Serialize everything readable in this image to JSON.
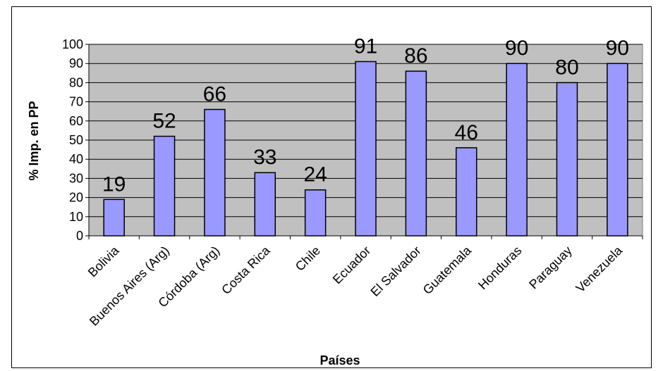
{
  "chart_data": {
    "type": "bar",
    "title": "",
    "xlabel": "Países",
    "ylabel": "% Imp. en PP",
    "categories": [
      "Bolivia",
      "Buenos Aires (Arg)",
      "Córdoba (Arg)",
      "Costa Rica",
      "Chile",
      "Ecuador",
      "El Salvador",
      "Guatemala",
      "Honduras",
      "Paraguay",
      "Venezuela"
    ],
    "values": [
      19,
      52,
      66,
      33,
      24,
      91,
      86,
      46,
      90,
      80,
      90
    ],
    "ylim": [
      0,
      100
    ],
    "yticks": [
      0,
      10,
      20,
      30,
      40,
      50,
      60,
      70,
      80,
      90,
      100
    ],
    "grid": true,
    "legend": "none",
    "colors": {
      "bar_fill": "#9999ff",
      "bar_stroke": "#000000",
      "plot_background": "#c0c0c0",
      "gridline": "#000000"
    }
  }
}
